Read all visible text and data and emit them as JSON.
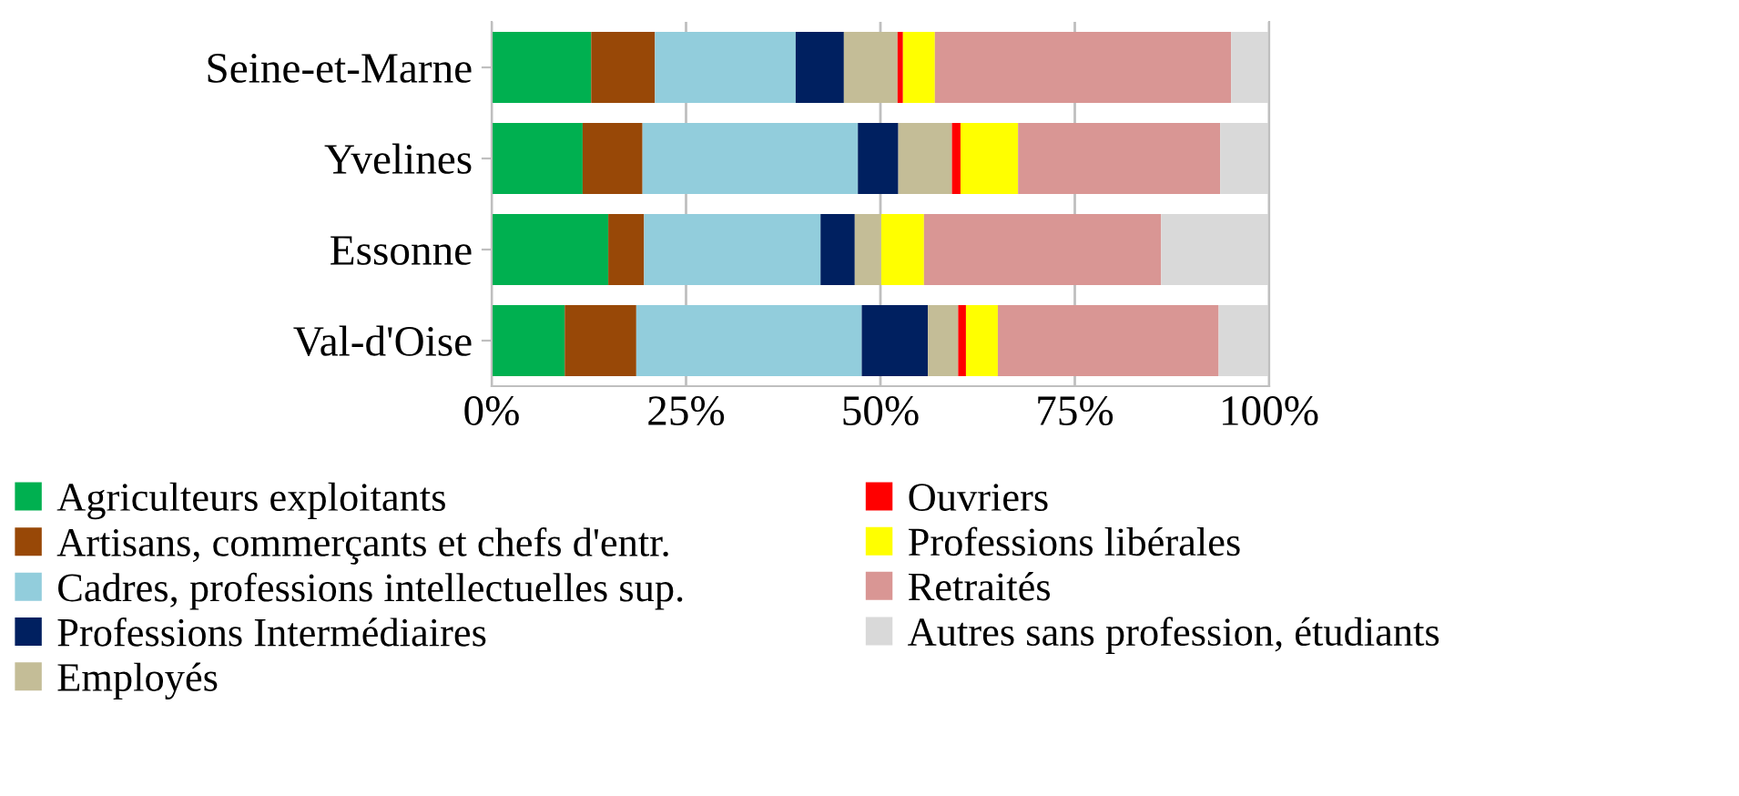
{
  "chart_data": {
    "type": "bar",
    "orientation": "horizontal",
    "stacked": true,
    "categories": [
      "Seine-et-Marne",
      "Yvelines",
      "Essonne",
      "Val-d'Oise"
    ],
    "series": [
      {
        "name": "Agriculteurs exploitants",
        "color": "#00b050",
        "values": [
          12.8,
          11.7,
          15.0,
          9.4
        ]
      },
      {
        "name": "Artisans, commerçants et chefs d'entr.",
        "color": "#984807",
        "values": [
          8.2,
          7.7,
          4.6,
          9.2
        ]
      },
      {
        "name": "Cadres, professions intellectuelles sup.",
        "color": "#92cddc",
        "values": [
          18.1,
          27.7,
          22.7,
          29.0
        ]
      },
      {
        "name": "Professions Intermédiaires",
        "color": "#002060",
        "values": [
          6.2,
          5.2,
          4.4,
          8.5
        ]
      },
      {
        "name": "Employés",
        "color": "#c4bd97",
        "values": [
          6.9,
          6.9,
          3.4,
          3.9
        ]
      },
      {
        "name": "Ouvriers",
        "color": "#ff0000",
        "values": [
          0.7,
          1.1,
          0,
          1.0
        ]
      },
      {
        "name": "Professions libérales",
        "color": "#ffff00",
        "values": [
          4.1,
          7.4,
          5.5,
          4.1
        ]
      },
      {
        "name": "Retraités",
        "color": "#d99694",
        "values": [
          38.1,
          26.0,
          30.5,
          28.4
        ]
      },
      {
        "name": "Autres sans profession, étudiants",
        "color": "#d9d9d9",
        "values": [
          4.9,
          6.3,
          13.9,
          6.5
        ]
      }
    ],
    "xlim": [
      0,
      100
    ],
    "xticks": [
      {
        "value": 0,
        "label": "0%"
      },
      {
        "value": 25,
        "label": "25%"
      },
      {
        "value": 50,
        "label": "50%"
      },
      {
        "value": 75,
        "label": "75%"
      },
      {
        "value": 100,
        "label": "100%"
      }
    ],
    "grid": "x",
    "legend": "bottom"
  }
}
